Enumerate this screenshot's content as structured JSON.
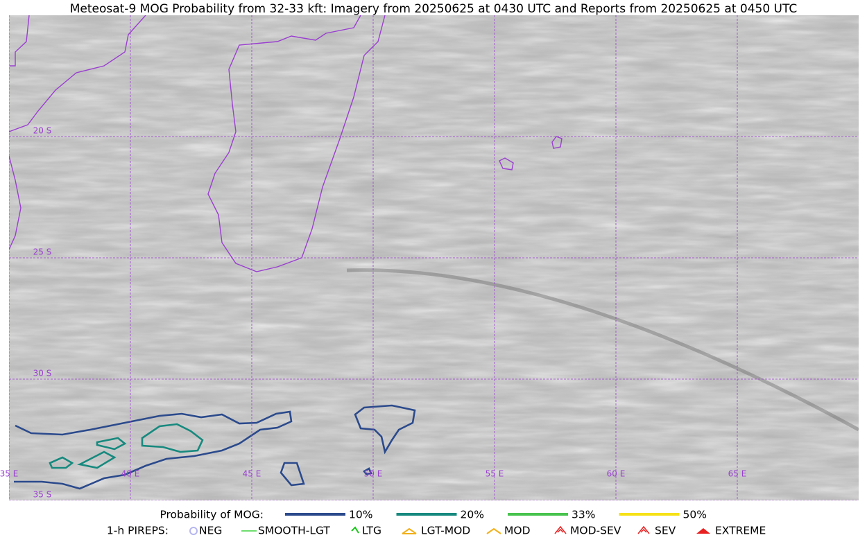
{
  "title": "Meteosat-9 MOG Probability from 32-33 kft: Imagery from 20250625 at 0430 UTC and Reports from 20250625 at 0450 UTC",
  "lat_labels": [
    "20 S",
    "25 S",
    "30 S",
    "35 S"
  ],
  "lon_labels": [
    "35 E",
    "40 E",
    "45 E",
    "50 E",
    "55 E",
    "60 E",
    "65 E"
  ],
  "mog_legend": {
    "title": "Probability of MOG:",
    "entries": [
      {
        "label": "10%",
        "color": "#2b4a8c"
      },
      {
        "label": "20%",
        "color": "#17897e"
      },
      {
        "label": "33%",
        "color": "#48c34e"
      },
      {
        "label": "50%",
        "color": "#f6e117"
      }
    ]
  },
  "pirep_legend": {
    "title": "1-h PIREPS:",
    "entries": [
      {
        "label": "NEG",
        "color": "#b6b6f0"
      },
      {
        "label": "SMOOTH-LGT",
        "color": "#3ed23e"
      },
      {
        "label": "LTG",
        "color": "#17c917"
      },
      {
        "label": "LGT-MOD",
        "color": "#f2b01a"
      },
      {
        "label": "MOD",
        "color": "#f2b01a"
      },
      {
        "label": "MOD-SEV",
        "color": "#e82020"
      },
      {
        "label": "SEV",
        "color": "#e82020"
      },
      {
        "label": "EXTREME",
        "color": "#e82020"
      }
    ]
  }
}
